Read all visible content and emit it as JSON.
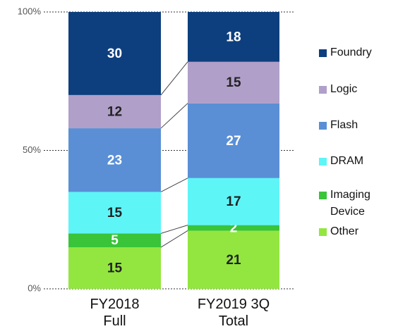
{
  "chart_data": {
    "type": "stacked_bar",
    "categories": [
      "FY2018 Full",
      "FY2019 3Q Total"
    ],
    "series": [
      {
        "name": "Other",
        "color": "#93e63f",
        "values": [
          15,
          21
        ]
      },
      {
        "name": "Imaging Device",
        "color": "#39c43a",
        "values": [
          5,
          2
        ]
      },
      {
        "name": "DRAM",
        "color": "#5ef5f7",
        "values": [
          15,
          17
        ]
      },
      {
        "name": "Flash",
        "color": "#5a8fd6",
        "values": [
          23,
          27
        ]
      },
      {
        "name": "Logic",
        "color": "#b09fc9",
        "values": [
          12,
          15
        ]
      },
      {
        "name": "Foundry",
        "color": "#0d3f7e",
        "values": [
          30,
          18
        ]
      }
    ],
    "ylim": [
      0,
      100
    ],
    "yticks": [
      {
        "value": 0,
        "label": "0%"
      },
      {
        "value": 50,
        "label": "50%"
      },
      {
        "value": 100,
        "label": "100%"
      }
    ],
    "grid": true,
    "legend": "right"
  }
}
